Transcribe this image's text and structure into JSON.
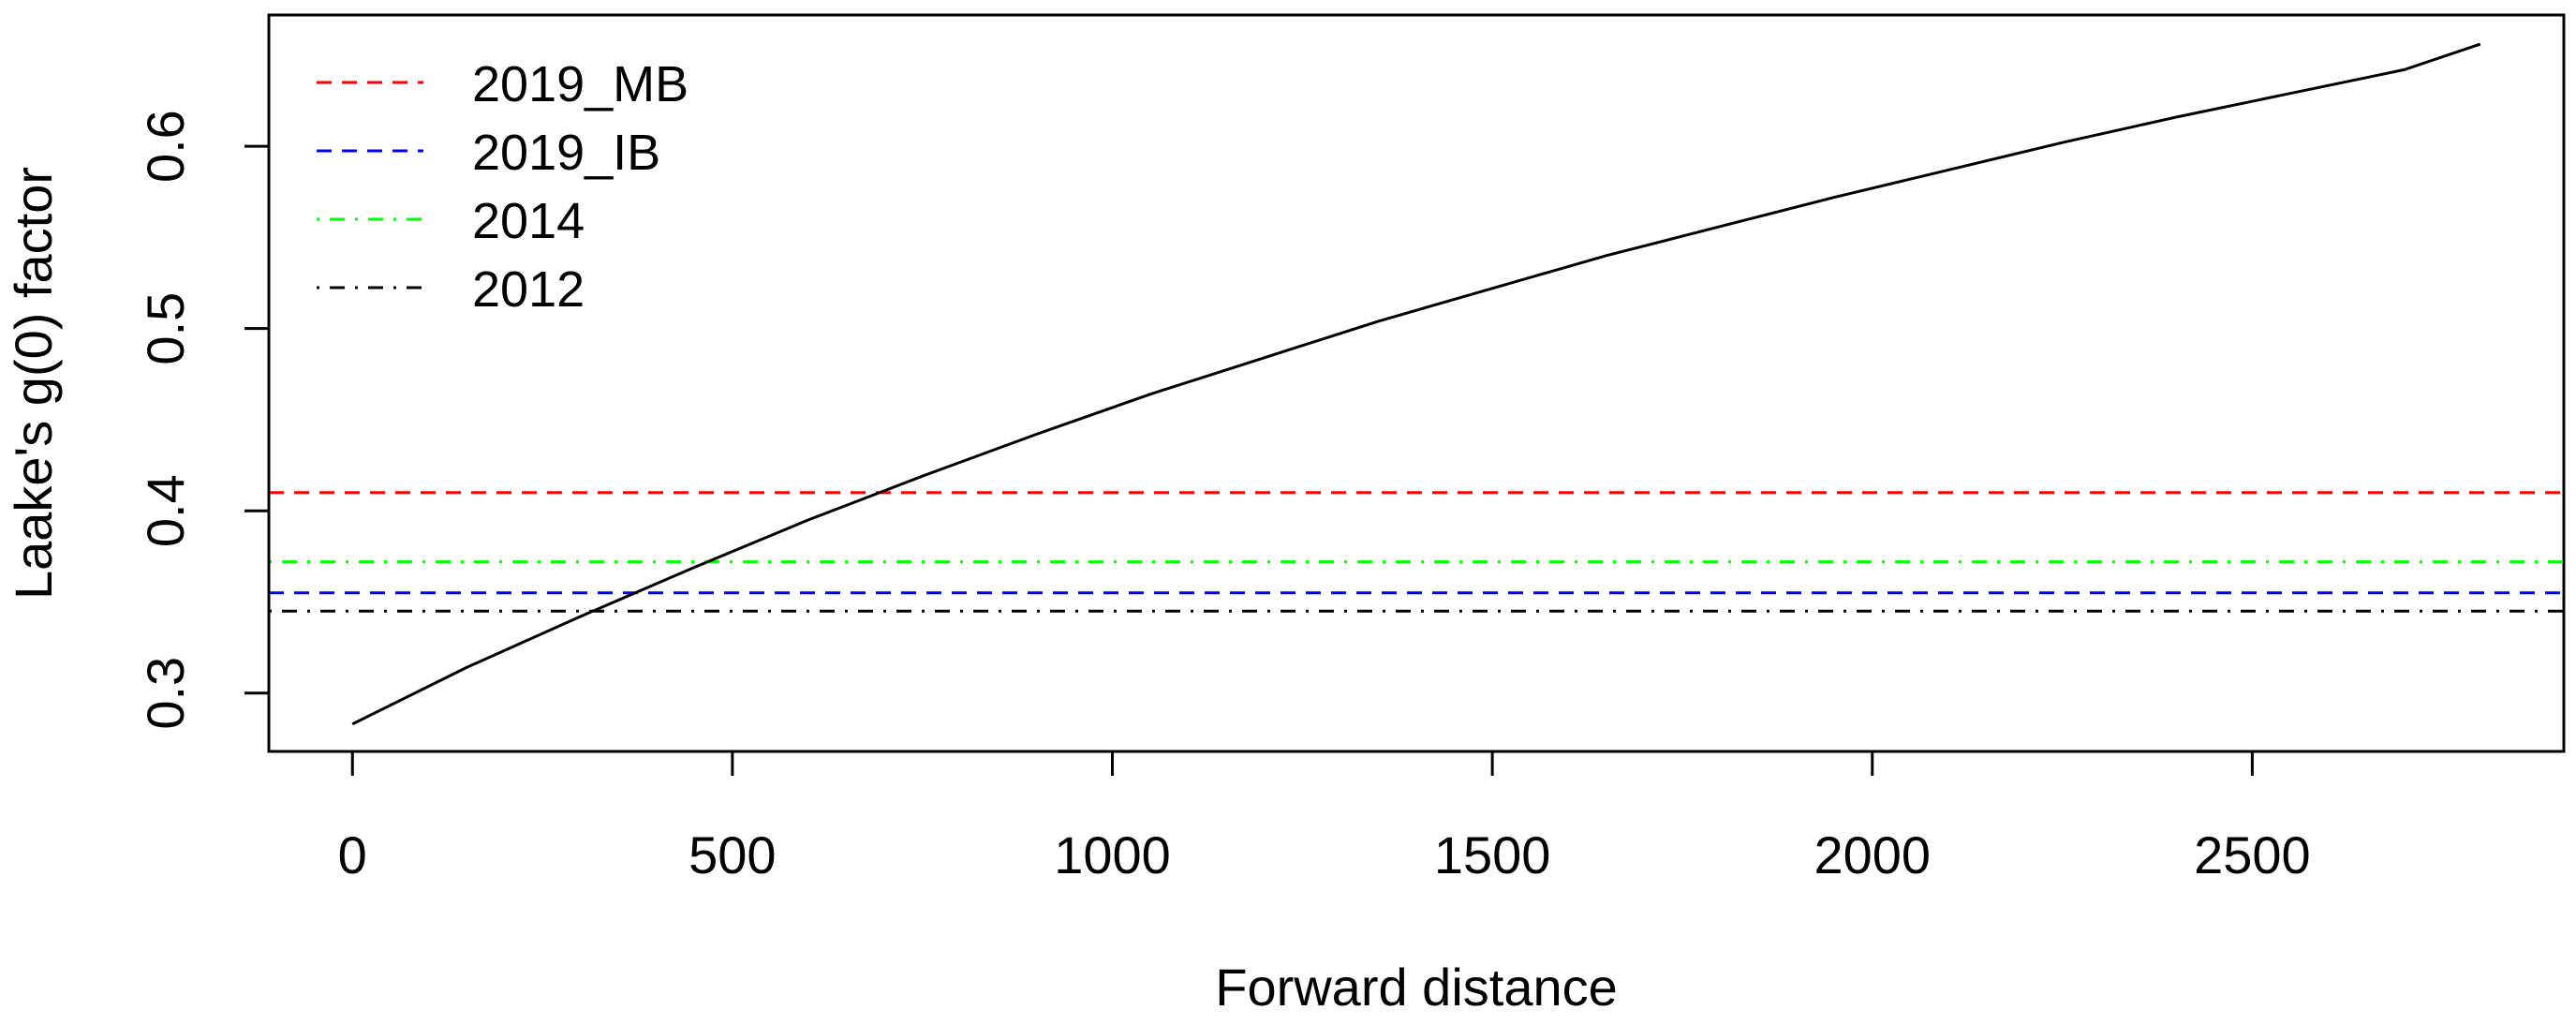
{
  "chart_data": {
    "type": "line",
    "title": "",
    "xlabel": "Forward distance",
    "ylabel": "Laake's g(0) factor",
    "xlim": [
      -110,
      2910
    ],
    "ylim": [
      0.268,
      0.672
    ],
    "xticks": [
      0,
      500,
      1000,
      1500,
      2000,
      2500
    ],
    "yticks": [
      0.3,
      0.4,
      0.5,
      0.6
    ],
    "grid": false,
    "legend_position": "top-left",
    "curve": {
      "color": "#000000",
      "x": [
        0,
        150,
        300,
        450,
        600,
        750,
        900,
        1050,
        1200,
        1350,
        1500,
        1650,
        1800,
        1950,
        2100,
        2250,
        2400,
        2550,
        2700,
        2800
      ],
      "y": [
        0.283,
        0.314,
        0.342,
        0.369,
        0.395,
        0.419,
        0.442,
        0.464,
        0.484,
        0.504,
        0.522,
        0.54,
        0.556,
        0.572,
        0.587,
        0.602,
        0.616,
        0.629,
        0.642,
        0.656
      ]
    },
    "series": [
      {
        "name": "2019_MB",
        "value": 0.41,
        "color": "#ff0000",
        "dash": "dashed"
      },
      {
        "name": "2019_IB",
        "value": 0.355,
        "color": "#0000ff",
        "dash": "dashed"
      },
      {
        "name": "2014",
        "value": 0.372,
        "color": "#00ff00",
        "dash": "dotdash"
      },
      {
        "name": "2012",
        "value": 0.345,
        "color": "#000000",
        "dash": "dotdash"
      }
    ]
  }
}
